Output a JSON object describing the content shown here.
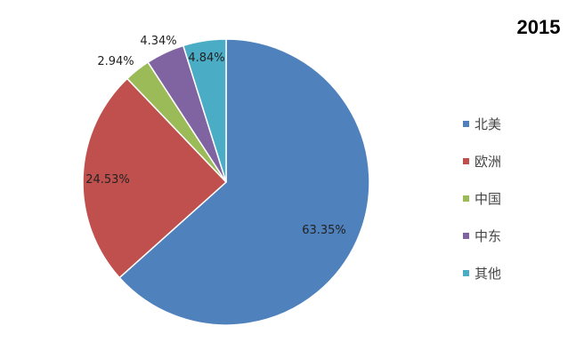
{
  "chart_data": {
    "type": "pie",
    "title": "2015",
    "categories": [
      "北美",
      "欧洲",
      "中国",
      "中东",
      "其他"
    ],
    "values": [
      63.35,
      24.53,
      2.94,
      4.34,
      4.84
    ],
    "labels": [
      "63.35%",
      "24.53%",
      "2.94%",
      "4.34%",
      "4.84%"
    ],
    "colors": [
      "#4F81BD",
      "#C0504D",
      "#9BBB59",
      "#8064A2",
      "#4BACC6"
    ],
    "start": "12 o'clock, clockwise",
    "legend_position": "right"
  }
}
